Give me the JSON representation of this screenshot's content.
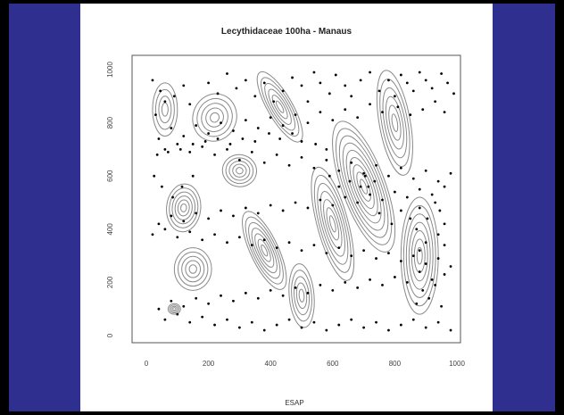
{
  "colors": {
    "background": "#2e2f8f",
    "panel": "#ffffff",
    "contour": "#8a8a8a",
    "points": "#000000"
  },
  "chart_data": {
    "type": "scatter",
    "title": "Lecythidaceae 100ha - Manaus",
    "xlabel": "ESAP",
    "ylabel": "",
    "xlim": [
      0,
      1000
    ],
    "ylim": [
      0,
      1000
    ],
    "xticks": [
      "0",
      "200",
      "400",
      "600",
      "800",
      "1000"
    ],
    "yticks": [
      "0",
      "200",
      "400",
      "600",
      "800",
      "1000"
    ],
    "grid": false,
    "legend": "none",
    "layers": [
      "elevation contours",
      "tree locations"
    ],
    "points": [
      [
        20,
        960
      ],
      [
        45,
        920
      ],
      [
        60,
        880
      ],
      [
        30,
        830
      ],
      [
        90,
        900
      ],
      [
        120,
        940
      ],
      [
        140,
        870
      ],
      [
        200,
        950
      ],
      [
        230,
        910
      ],
      [
        260,
        985
      ],
      [
        290,
        930
      ],
      [
        320,
        960
      ],
      [
        350,
        900
      ],
      [
        380,
        950
      ],
      [
        410,
        880
      ],
      [
        440,
        920
      ],
      [
        470,
        970
      ],
      [
        500,
        940
      ],
      [
        520,
        880
      ],
      [
        540,
        990
      ],
      [
        560,
        950
      ],
      [
        590,
        910
      ],
      [
        610,
        980
      ],
      [
        640,
        940
      ],
      [
        660,
        900
      ],
      [
        690,
        960
      ],
      [
        720,
        990
      ],
      [
        750,
        920
      ],
      [
        780,
        960
      ],
      [
        800,
        900
      ],
      [
        820,
        980
      ],
      [
        840,
        950
      ],
      [
        860,
        920
      ],
      [
        880,
        990
      ],
      [
        900,
        960
      ],
      [
        920,
        930
      ],
      [
        950,
        985
      ],
      [
        970,
        950
      ],
      [
        990,
        910
      ],
      [
        930,
        880
      ],
      [
        960,
        840
      ],
      [
        890,
        850
      ],
      [
        850,
        830
      ],
      [
        810,
        860
      ],
      [
        760,
        840
      ],
      [
        720,
        870
      ],
      [
        680,
        820
      ],
      [
        640,
        850
      ],
      [
        600,
        810
      ],
      [
        560,
        840
      ],
      [
        520,
        800
      ],
      [
        480,
        830
      ],
      [
        440,
        790
      ],
      [
        400,
        820
      ],
      [
        360,
        780
      ],
      [
        320,
        810
      ],
      [
        280,
        770
      ],
      [
        240,
        800
      ],
      [
        200,
        760
      ],
      [
        160,
        790
      ],
      [
        120,
        750
      ],
      [
        80,
        780
      ],
      [
        40,
        740
      ],
      [
        60,
        700
      ],
      [
        100,
        720
      ],
      [
        140,
        690
      ],
      [
        180,
        710
      ],
      [
        220,
        680
      ],
      [
        260,
        700
      ],
      [
        300,
        660
      ],
      [
        340,
        690
      ],
      [
        380,
        650
      ],
      [
        420,
        680
      ],
      [
        460,
        640
      ],
      [
        500,
        670
      ],
      [
        540,
        630
      ],
      [
        580,
        660
      ],
      [
        620,
        620
      ],
      [
        660,
        650
      ],
      [
        700,
        610
      ],
      [
        740,
        640
      ],
      [
        780,
        600
      ],
      [
        820,
        630
      ],
      [
        860,
        590
      ],
      [
        900,
        620
      ],
      [
        940,
        580
      ],
      [
        980,
        610
      ],
      [
        960,
        560
      ],
      [
        920,
        530
      ],
      [
        880,
        550
      ],
      [
        840,
        520
      ],
      [
        800,
        540
      ],
      [
        760,
        510
      ],
      [
        720,
        530
      ],
      [
        680,
        500
      ],
      [
        640,
        520
      ],
      [
        600,
        490
      ],
      [
        560,
        510
      ],
      [
        520,
        480
      ],
      [
        480,
        500
      ],
      [
        440,
        470
      ],
      [
        400,
        490
      ],
      [
        360,
        460
      ],
      [
        320,
        480
      ],
      [
        280,
        450
      ],
      [
        240,
        470
      ],
      [
        200,
        440
      ],
      [
        160,
        460
      ],
      [
        120,
        430
      ],
      [
        80,
        450
      ],
      [
        40,
        420
      ],
      [
        20,
        380
      ],
      [
        60,
        400
      ],
      [
        100,
        370
      ],
      [
        140,
        390
      ],
      [
        180,
        360
      ],
      [
        220,
        380
      ],
      [
        260,
        350
      ],
      [
        300,
        370
      ],
      [
        340,
        340
      ],
      [
        380,
        360
      ],
      [
        420,
        330
      ],
      [
        460,
        350
      ],
      [
        500,
        320
      ],
      [
        540,
        340
      ],
      [
        580,
        310
      ],
      [
        620,
        330
      ],
      [
        660,
        300
      ],
      [
        700,
        320
      ],
      [
        740,
        290
      ],
      [
        780,
        310
      ],
      [
        820,
        280
      ],
      [
        860,
        300
      ],
      [
        900,
        270
      ],
      [
        940,
        290
      ],
      [
        980,
        260
      ],
      [
        960,
        230
      ],
      [
        920,
        210
      ],
      [
        880,
        240
      ],
      [
        840,
        200
      ],
      [
        800,
        220
      ],
      [
        760,
        190
      ],
      [
        720,
        210
      ],
      [
        680,
        180
      ],
      [
        640,
        200
      ],
      [
        600,
        170
      ],
      [
        560,
        190
      ],
      [
        520,
        160
      ],
      [
        480,
        180
      ],
      [
        440,
        150
      ],
      [
        400,
        170
      ],
      [
        360,
        140
      ],
      [
        320,
        160
      ],
      [
        280,
        130
      ],
      [
        240,
        150
      ],
      [
        200,
        120
      ],
      [
        160,
        140
      ],
      [
        120,
        110
      ],
      [
        80,
        130
      ],
      [
        40,
        100
      ],
      [
        60,
        60
      ],
      [
        100,
        80
      ],
      [
        140,
        50
      ],
      [
        180,
        70
      ],
      [
        220,
        40
      ],
      [
        260,
        60
      ],
      [
        300,
        30
      ],
      [
        340,
        50
      ],
      [
        380,
        20
      ],
      [
        420,
        40
      ],
      [
        460,
        60
      ],
      [
        500,
        30
      ],
      [
        540,
        50
      ],
      [
        580,
        20
      ],
      [
        620,
        40
      ],
      [
        660,
        60
      ],
      [
        700,
        30
      ],
      [
        740,
        50
      ],
      [
        780,
        20
      ],
      [
        820,
        40
      ],
      [
        860,
        60
      ],
      [
        900,
        30
      ],
      [
        940,
        50
      ],
      [
        980,
        20
      ],
      [
        870,
        120
      ],
      [
        910,
        140
      ],
      [
        950,
        110
      ],
      [
        890,
        170
      ],
      [
        930,
        190
      ],
      [
        870,
        400
      ],
      [
        905,
        440
      ],
      [
        945,
        470
      ],
      [
        880,
        480
      ],
      [
        930,
        500
      ],
      [
        960,
        420
      ],
      [
        900,
        350
      ],
      [
        940,
        380
      ],
      [
        880,
        320
      ],
      [
        960,
        340
      ],
      [
        850,
        440
      ],
      [
        820,
        470
      ],
      [
        790,
        420
      ],
      [
        750,
        460
      ],
      [
        715,
        560
      ],
      [
        735,
        580
      ],
      [
        705,
        600
      ],
      [
        690,
        560
      ],
      [
        655,
        580
      ],
      [
        620,
        560
      ],
      [
        590,
        600
      ],
      [
        580,
        700
      ],
      [
        545,
        720
      ],
      [
        500,
        730
      ],
      [
        470,
        760
      ],
      [
        430,
        740
      ],
      [
        395,
        760
      ],
      [
        350,
        730
      ],
      [
        310,
        740
      ],
      [
        270,
        720
      ],
      [
        230,
        740
      ],
      [
        190,
        730
      ],
      [
        150,
        720
      ],
      [
        110,
        700
      ],
      [
        70,
        690
      ],
      [
        35,
        680
      ],
      [
        25,
        600
      ],
      [
        50,
        560
      ],
      [
        85,
        520
      ],
      [
        115,
        560
      ],
      [
        150,
        600
      ]
    ]
  }
}
